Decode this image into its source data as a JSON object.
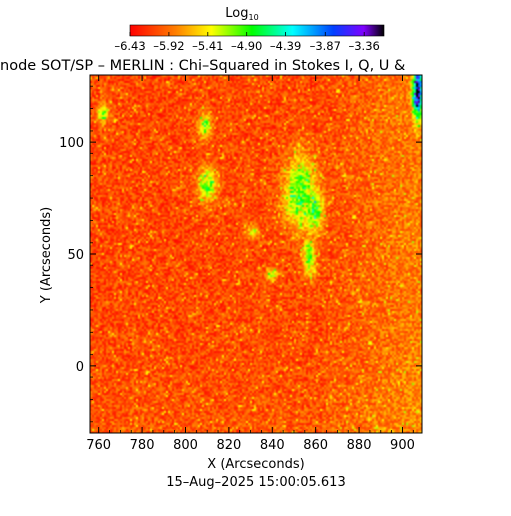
{
  "chart_data": {
    "type": "heatmap",
    "title": "inode SOT/SP – MERLIN : Chi–Squared in Stokes I, Q, U &",
    "xlabel": "X (Arcseconds)",
    "ylabel": "Y (Arcseconds)",
    "footer": "15–Aug–2025 15:00:05.613",
    "xlim": [
      756,
      909
    ],
    "ylim": [
      -30,
      130
    ],
    "x_ticks": [
      760,
      780,
      800,
      820,
      840,
      860,
      880,
      900
    ],
    "y_ticks": [
      0,
      50,
      100
    ],
    "colorbar": {
      "label_base": "Log",
      "label_sub": "10",
      "colormap": "rainbow",
      "range": [
        -6.43,
        -3.1
      ],
      "tick_values": [
        -6.43,
        -5.92,
        -5.41,
        -4.9,
        -4.39,
        -3.87,
        -3.36
      ],
      "tick_labels": [
        "–6.43",
        "–5.92",
        "–5.41",
        "–4.90",
        "–4.39",
        "–3.87",
        "–3.36"
      ]
    },
    "background_level": -6.1,
    "features": [
      {
        "kind": "blob",
        "x": 853,
        "y": 77,
        "sx": 5,
        "sy": 11,
        "value": -4.85
      },
      {
        "kind": "blob",
        "x": 859,
        "y": 70,
        "sx": 3,
        "sy": 7,
        "value": -4.8
      },
      {
        "kind": "blob",
        "x": 857,
        "y": 49,
        "sx": 2,
        "sy": 6,
        "value": -5.0
      },
      {
        "kind": "blob",
        "x": 810,
        "y": 81,
        "sx": 3,
        "sy": 5,
        "value": -5.0
      },
      {
        "kind": "blob",
        "x": 809,
        "y": 107,
        "sx": 2,
        "sy": 4,
        "value": -5.0
      },
      {
        "kind": "blob",
        "x": 762,
        "y": 113,
        "sx": 2,
        "sy": 3,
        "value": -5.1
      },
      {
        "kind": "blob",
        "x": 840,
        "y": 41,
        "sx": 2,
        "sy": 2,
        "value": -5.2
      },
      {
        "kind": "blob",
        "x": 831,
        "y": 60,
        "sx": 2,
        "sy": 2,
        "value": -5.3
      },
      {
        "kind": "limb",
        "x": 907,
        "y": 123,
        "sx": 1.5,
        "sy": 8,
        "value": -3.3
      }
    ]
  }
}
